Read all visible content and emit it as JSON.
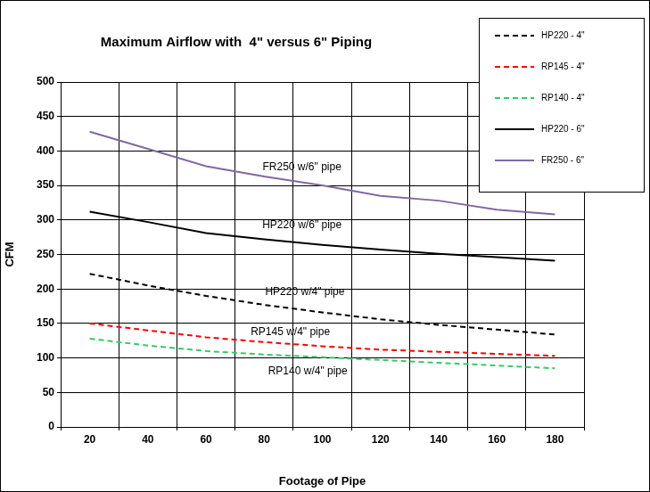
{
  "chart_data": {
    "type": "line",
    "title": "Maximum Airflow with  4\" versus 6\" Piping",
    "x_label": "Footage of Pipe",
    "y_label": "CFM",
    "categories": [
      20,
      40,
      60,
      80,
      100,
      120,
      140,
      160,
      180
    ],
    "series": [
      {
        "name": "HP220 - 4\"",
        "color": "#000000",
        "line_style": "dashed",
        "values": [
          222,
          205,
          190,
          177,
          166,
          156,
          148,
          141,
          134
        ]
      },
      {
        "name": "RP145 - 4\"",
        "color": "#ff0000",
        "line_style": "dashed",
        "values": [
          150,
          140,
          130,
          123,
          117,
          112,
          109,
          106,
          103
        ]
      },
      {
        "name": "RP140 - 4\"",
        "color": "#33cc66",
        "line_style": "dashed",
        "values": [
          128,
          118,
          110,
          105,
          101,
          97,
          93,
          89,
          85
        ]
      },
      {
        "name": "HP220 - 6\"",
        "color": "#000000",
        "line_style": "solid",
        "values": [
          312,
          297,
          281,
          272,
          264,
          257,
          251,
          246,
          241
        ]
      },
      {
        "name": "FR250 - 6\"",
        "color": "#7f6a9e",
        "line_style": "solid",
        "values": [
          428,
          403,
          378,
          363,
          350,
          335,
          328,
          315,
          308
        ]
      }
    ],
    "annotations": [
      {
        "text": "FR250 w/6\" pipe",
        "x": 93,
        "y": 377
      },
      {
        "text": "HP220 w/6\" pipe",
        "x": 93,
        "y": 293
      },
      {
        "text": "HP220 w/4\" pipe",
        "x": 94,
        "y": 195
      },
      {
        "text": "RP145 w/4\" pipe",
        "x": 89,
        "y": 138
      },
      {
        "text": "RP140 w/4\" pipe",
        "x": 95,
        "y": 81
      }
    ],
    "ylim": [
      0,
      500
    ],
    "yticks": [
      0,
      50,
      100,
      150,
      200,
      250,
      300,
      350,
      400,
      450,
      500
    ],
    "grid": true,
    "legend": "top right"
  }
}
